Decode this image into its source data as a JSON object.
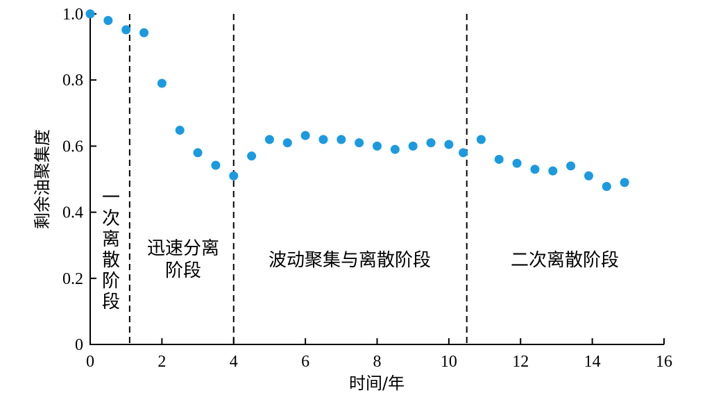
{
  "chart_data": {
    "type": "scatter",
    "xlabel": "时间/年",
    "ylabel": "剩余油聚集度",
    "xlim": [
      0,
      16
    ],
    "ylim": [
      0,
      1.0
    ],
    "xticks": [
      0,
      2,
      4,
      6,
      8,
      10,
      12,
      14,
      16
    ],
    "yticks": [
      0,
      0.2,
      0.4,
      0.6,
      0.8,
      1.0
    ],
    "xtick_labels": [
      "0",
      "2",
      "4",
      "6",
      "8",
      "10",
      "12",
      "14",
      "16"
    ],
    "ytick_labels": [
      "0",
      "0.2",
      "0.4",
      "0.6",
      "0.8",
      "1.0"
    ],
    "color": "#1b9ae0",
    "x": [
      0,
      0.5,
      1.0,
      1.5,
      2.0,
      2.5,
      3.0,
      3.5,
      4.0,
      4.5,
      5.0,
      5.5,
      6.0,
      6.5,
      7.0,
      7.5,
      8.0,
      8.5,
      9.0,
      9.5,
      10.0,
      10.4,
      10.9,
      11.4,
      11.9,
      12.4,
      12.9,
      13.4,
      13.9,
      14.4,
      14.9
    ],
    "y": [
      1.0,
      0.98,
      0.952,
      0.943,
      0.79,
      0.648,
      0.58,
      0.542,
      0.51,
      0.57,
      0.62,
      0.61,
      0.632,
      0.62,
      0.62,
      0.61,
      0.6,
      0.59,
      0.6,
      0.61,
      0.605,
      0.58,
      0.62,
      0.56,
      0.548,
      0.53,
      0.525,
      0.54,
      0.51,
      0.478,
      0.49
    ],
    "phase_boundaries": [
      1.1,
      4.0,
      10.5
    ],
    "phases": [
      "一次离散阶段",
      "迅速分离阶段",
      "波动聚集与离散阶段",
      "二次离散阶段"
    ]
  }
}
